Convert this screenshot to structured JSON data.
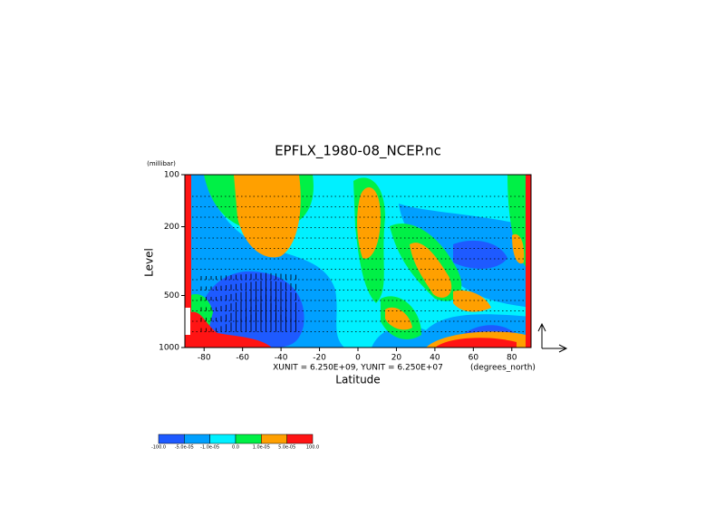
{
  "chart_data": {
    "type": "contour",
    "title": "EPFLX_1980-08_NCEP.nc",
    "x_label": "Latitude",
    "y_label": "Level",
    "y_units": "(millibar)",
    "x_units": "(degrees_north)",
    "vector_units": "XUNIT = 6.250E+09, YUNIT = 6.250E+07",
    "xlim": [
      -90,
      90
    ],
    "xticks": [
      -80,
      -60,
      -40,
      -20,
      0,
      20,
      40,
      60,
      80
    ],
    "ylim": [
      1000,
      100
    ],
    "yticks": [
      100,
      200,
      500,
      1000
    ],
    "y_log": true,
    "colorbar": {
      "levels": [
        {
          "value": -100,
          "label": "-100.0"
        },
        {
          "value": -5e-05,
          "label": "-5.0e-05"
        },
        {
          "value": -1e-05,
          "label": "-1.0e-05"
        },
        {
          "value": 0,
          "label": "0.0"
        },
        {
          "value": 1e-05,
          "label": "1.0e-05"
        },
        {
          "value": 5e-05,
          "label": "5.0e-05"
        },
        {
          "value": 100,
          "label": "100.0"
        }
      ],
      "colors": [
        "#1e5aff",
        "#00a0ff",
        "#00f0ff",
        "#00f046",
        "#ffa000",
        "#ff1414"
      ]
    }
  }
}
